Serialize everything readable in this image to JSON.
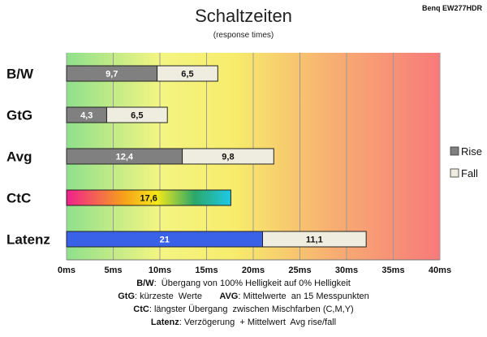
{
  "chart_data": {
    "type": "bar",
    "title": "Schaltzeiten",
    "subtitle": "(response times)",
    "corner_label": "Benq EW277HDR",
    "categories": [
      "B/W",
      "GtG",
      "Avg",
      "CtC",
      "Latenz"
    ],
    "stacked": true,
    "orientation": "horizontal",
    "series": [
      {
        "name": "Rise",
        "values": [
          9.7,
          4.3,
          12.4,
          null,
          null
        ],
        "labels": [
          "9,7",
          "4,3",
          "12,4",
          "",
          ""
        ],
        "color": "#808080"
      },
      {
        "name": "Fall",
        "values": [
          6.5,
          6.5,
          9.8,
          null,
          11.1
        ],
        "labels": [
          "6,5",
          "6,5",
          "9,8",
          "",
          "11,1"
        ],
        "color": "#efede0"
      }
    ],
    "single_bars": [
      {
        "category": "CtC",
        "value": 17.6,
        "label": "17,6",
        "fill": "gradient-magenta-yellow-cyan"
      },
      {
        "category": "Latenz",
        "value": 21,
        "label": "21",
        "fill": "#3a62e8"
      }
    ],
    "xlim": [
      0,
      40
    ],
    "x_ticks": [
      "0ms",
      "5ms",
      "10ms",
      "15ms",
      "20ms",
      "25ms",
      "30ms",
      "35ms",
      "40ms"
    ],
    "x_tick_values": [
      0,
      5,
      10,
      15,
      20,
      25,
      30,
      35,
      40
    ],
    "grid": true,
    "legend_position": "right",
    "background": "gradient green-yellow-red"
  },
  "footnotes": [
    [
      {
        "b": "B/W",
        "t": ":  Übergang von 100% Helligkeit auf 0% Helligkeit"
      }
    ],
    [
      {
        "b": "GtG",
        "t": ": kürzeste  Werte       "
      },
      {
        "b": "AVG",
        "t": ": Mittelwerte  an 15 Messpunkten"
      }
    ],
    [
      {
        "b": "CtC",
        "t": ": längster Übergang  zwischen Mischfarben (C,M,Y)"
      }
    ],
    [
      {
        "b": "Latenz",
        "t": ": Verzögerung  + Mittelwert  Avg rise/fall"
      }
    ]
  ]
}
